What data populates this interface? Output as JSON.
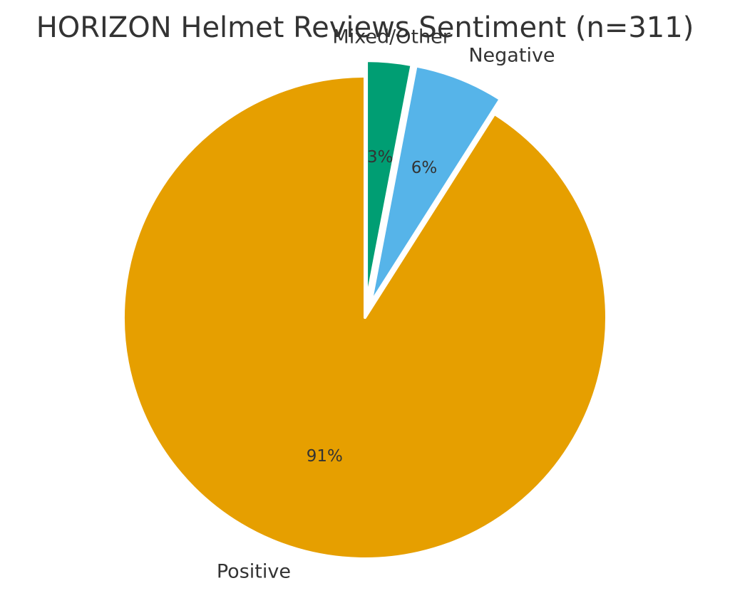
{
  "chart_data": {
    "type": "pie",
    "title": "HORIZON Helmet Reviews Sentiment (n=311)",
    "slices": [
      {
        "label": "Mixed/Other",
        "value": 3,
        "pct_label": "3%",
        "color": "#009E73",
        "exploded": true
      },
      {
        "label": "Negative",
        "value": 6,
        "pct_label": "6%",
        "color": "#56B4E9",
        "exploded": true
      },
      {
        "label": "Positive",
        "value": 91,
        "pct_label": "91%",
        "color": "#E69F00",
        "exploded": false
      }
    ],
    "start_angle": "top",
    "direction": "clockwise",
    "legend": "none"
  }
}
